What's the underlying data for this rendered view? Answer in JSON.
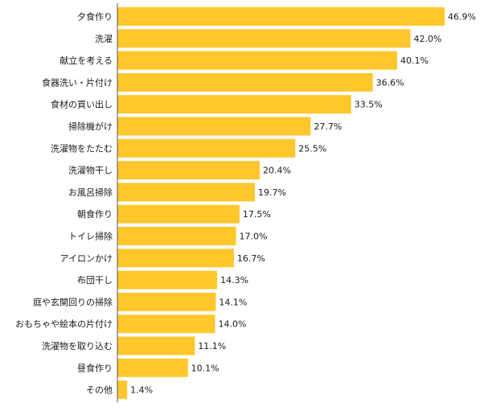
{
  "chart_data": {
    "type": "bar",
    "orientation": "horizontal",
    "categories": [
      "夕食作り",
      "洗濯",
      "献立を考える",
      "食器洗い・片付け",
      "食材の買い出し",
      "掃除機がけ",
      "洗濯物をたたむ",
      "洗濯物干し",
      "お風呂掃除",
      "朝食作り",
      "トイレ掃除",
      "アイロンかけ",
      "布団干し",
      "庭や玄関回りの掃除",
      "おもちゃや絵本の片付け",
      "洗濯物を取り込む",
      "昼食作り",
      "その他"
    ],
    "values": [
      46.9,
      42.0,
      40.1,
      36.6,
      33.5,
      27.7,
      25.5,
      20.4,
      19.7,
      17.5,
      17.0,
      16.7,
      14.3,
      14.1,
      14.0,
      11.1,
      10.1,
      1.4
    ],
    "value_labels": [
      "46.9%",
      "42.0%",
      "40.1%",
      "36.6%",
      "33.5%",
      "27.7%",
      "25.5%",
      "20.4%",
      "19.7%",
      "17.5%",
      "17.0%",
      "16.7%",
      "14.3%",
      "14.1%",
      "14.0%",
      "11.1%",
      "10.1%",
      "1.4%"
    ],
    "xlim": [
      0,
      46.9
    ],
    "grid": false,
    "colors": {
      "bar": "#FFC72C",
      "axis": "#555555"
    }
  }
}
